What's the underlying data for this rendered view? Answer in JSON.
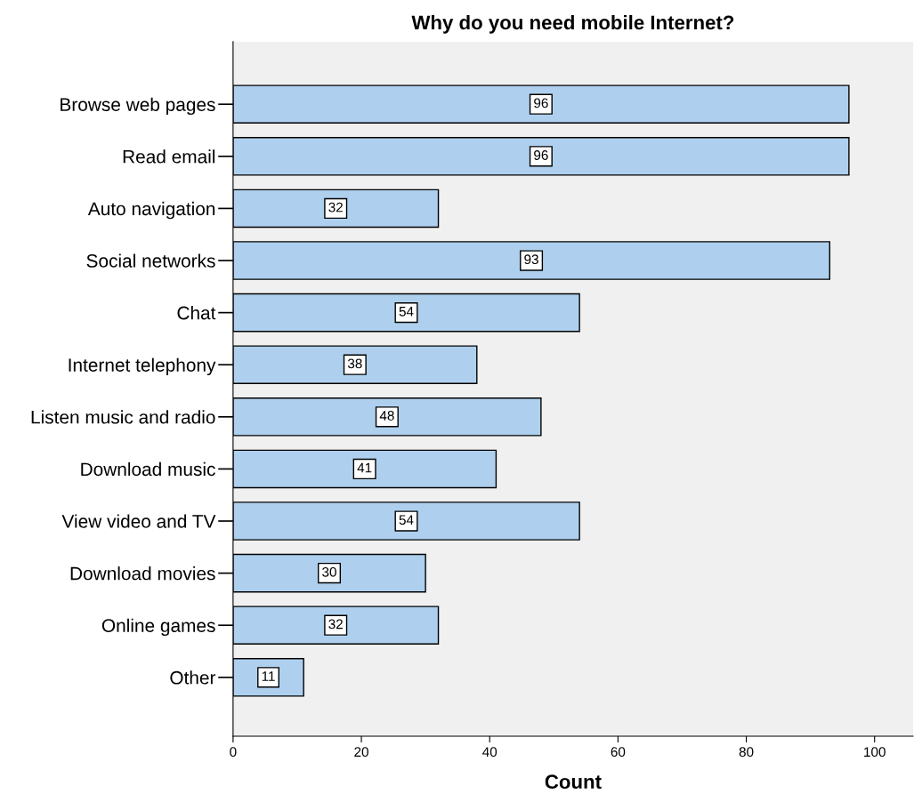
{
  "chart_data": {
    "type": "bar",
    "orientation": "horizontal",
    "title": "Why do you need mobile Internet?",
    "xlabel": "Count",
    "categories": [
      "Browse web pages",
      "Read email",
      "Auto navigation",
      "Social networks",
      "Chat",
      "Internet telephony",
      "Listen music and radio",
      "Download music",
      "View video and TV",
      "Download movies",
      "Online games",
      "Other"
    ],
    "values": [
      96,
      96,
      32,
      93,
      54,
      38,
      48,
      41,
      54,
      30,
      32,
      11
    ],
    "color": "#aed0ee",
    "xlim": [
      0,
      106
    ],
    "xticks": [
      0,
      20,
      40,
      60,
      80,
      100
    ],
    "data_labels": true,
    "grid": false
  }
}
